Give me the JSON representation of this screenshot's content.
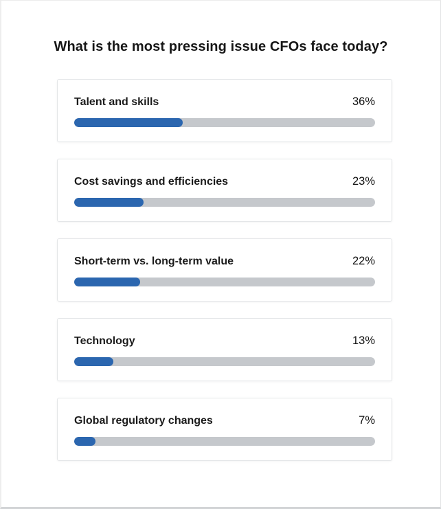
{
  "poll": {
    "title": "What is the most pressing issue CFOs face today?"
  },
  "chart_data": {
    "type": "bar",
    "orientation": "horizontal",
    "title": "What is the most pressing issue CFOs face today?",
    "categories": [
      "Talent and skills",
      "Cost savings and efficiencies",
      "Short-term vs. long-term value",
      "Technology",
      "Global regulatory changes"
    ],
    "values": [
      36,
      23,
      22,
      13,
      7
    ],
    "value_labels": [
      "36%",
      "23%",
      "22%",
      "13%",
      "7%"
    ],
    "unit": "%",
    "xlim": [
      0,
      100
    ],
    "grid": false,
    "legend": false,
    "colors": {
      "bar_fill": "#2b66af",
      "bar_track": "#c5c8cc",
      "text": "#1a1a1a",
      "card_border": "#e4e6e8",
      "frame_bottom_border": "#d2d4d6"
    }
  }
}
